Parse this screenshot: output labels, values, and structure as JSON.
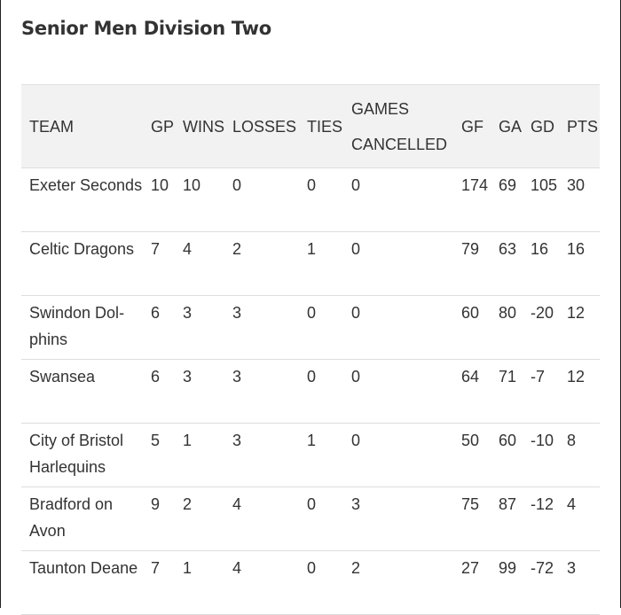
{
  "title": "Senior Men Division Two",
  "columns": [
    "TEAM",
    "GP",
    "WINS",
    "LOSSES",
    "TIES",
    "GAMES CANCELLED",
    "GF",
    "GA",
    "GD",
    "PTS"
  ],
  "rows": [
    [
      "Exeter Seconds",
      "10",
      "10",
      "0",
      "0",
      "0",
      "174",
      "69",
      "105",
      "30"
    ],
    [
      "Celtic Dragons",
      "7",
      "4",
      "2",
      "1",
      "0",
      "79",
      "63",
      "16",
      "16"
    ],
    [
      "Swindon Dol­phins",
      "6",
      "3",
      "3",
      "0",
      "0",
      "60",
      "80",
      "-20",
      "12"
    ],
    [
      "Swansea",
      "6",
      "3",
      "3",
      "0",
      "0",
      "64",
      "71",
      "-7",
      "12"
    ],
    [
      "City of Bristol Harlequins",
      "5",
      "1",
      "3",
      "1",
      "0",
      "50",
      "60",
      "-10",
      "8"
    ],
    [
      "Bradford on Avon",
      "9",
      "2",
      "4",
      "0",
      "3",
      "75",
      "87",
      "-12",
      "4"
    ],
    [
      "Taunton Deane",
      "7",
      "1",
      "4",
      "0",
      "2",
      "27",
      "99",
      "-72",
      "3"
    ]
  ]
}
